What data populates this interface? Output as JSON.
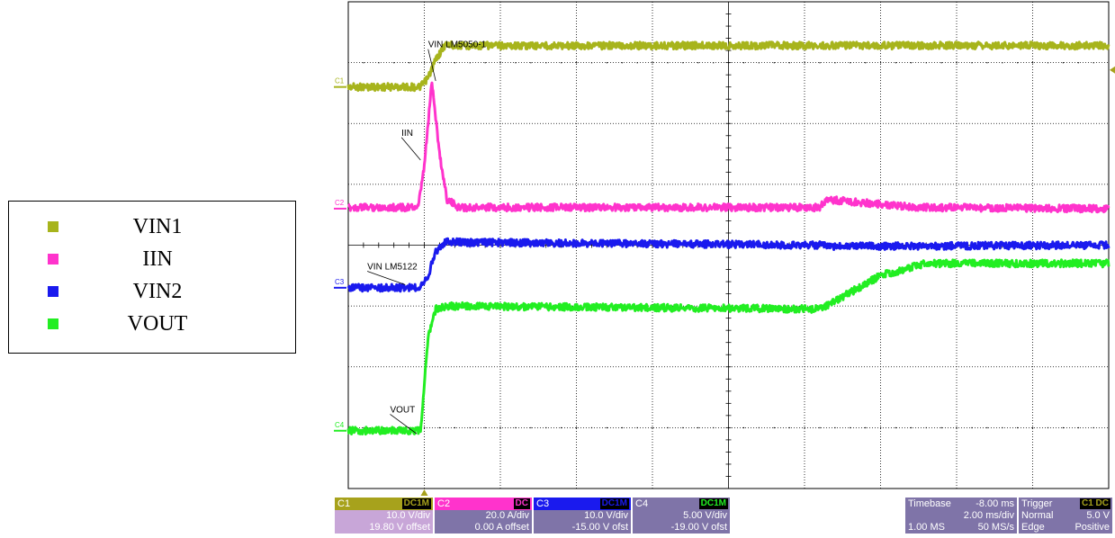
{
  "legend": {
    "items": [
      {
        "label": "VIN1",
        "color": "#a7b41c"
      },
      {
        "label": "IIN",
        "color": "#ff33cc"
      },
      {
        "label": "VIN2",
        "color": "#1a1aee"
      },
      {
        "label": "VOUT",
        "color": "#22ee22"
      }
    ]
  },
  "chart_data": {
    "type": "line",
    "grid": true,
    "x_divisions": 10,
    "y_divisions": 8,
    "xlim_div": [
      0,
      10
    ],
    "ylim_div": [
      0,
      8
    ],
    "annotations": [
      {
        "text": "VIN LM5050-1",
        "at_div": [
          1.05,
          7.25
        ],
        "target_div": [
          1.15,
          6.7
        ]
      },
      {
        "text": "IIN",
        "at_div": [
          0.7,
          5.8
        ],
        "target_div": [
          0.95,
          5.4
        ]
      },
      {
        "text": "VIN LM5122",
        "at_div": [
          0.25,
          3.6
        ],
        "target_div": [
          0.75,
          3.35
        ]
      },
      {
        "text": "VOUT",
        "at_div": [
          0.55,
          1.25
        ],
        "target_div": [
          0.9,
          0.9
        ]
      }
    ],
    "channel_markers": [
      {
        "label": "C1",
        "color": "#a7b41c",
        "y_div": 6.6
      },
      {
        "label": "C2",
        "color": "#ff33cc",
        "y_div": 4.6
      },
      {
        "label": "C3",
        "color": "#1a1aee",
        "y_div": 3.3
      },
      {
        "label": "C4",
        "color": "#22ee22",
        "y_div": 0.95
      }
    ],
    "series": [
      {
        "name": "VIN1",
        "color": "#a7b41c",
        "points": [
          [
            0,
            6.6
          ],
          [
            0.95,
            6.6
          ],
          [
            1.05,
            6.75
          ],
          [
            1.15,
            7.05
          ],
          [
            1.28,
            7.3
          ],
          [
            1.4,
            7.28
          ],
          [
            10,
            7.28
          ]
        ]
      },
      {
        "name": "IIN",
        "color": "#ff33cc",
        "points": [
          [
            0,
            4.62
          ],
          [
            0.92,
            4.62
          ],
          [
            1.0,
            5.3
          ],
          [
            1.1,
            6.7
          ],
          [
            1.2,
            5.5
          ],
          [
            1.3,
            4.75
          ],
          [
            1.45,
            4.62
          ],
          [
            6.2,
            4.62
          ],
          [
            6.3,
            4.75
          ],
          [
            7.5,
            4.62
          ],
          [
            10,
            4.6
          ]
        ]
      },
      {
        "name": "VIN2",
        "color": "#1a1aee",
        "points": [
          [
            0,
            3.3
          ],
          [
            0.92,
            3.3
          ],
          [
            1.05,
            3.5
          ],
          [
            1.15,
            3.9
          ],
          [
            1.28,
            4.05
          ],
          [
            6.2,
            4.0
          ],
          [
            6.3,
            3.98
          ],
          [
            10,
            4.0
          ]
        ]
      },
      {
        "name": "VOUT",
        "color": "#22ee22",
        "points": [
          [
            0,
            0.95
          ],
          [
            0.95,
            0.95
          ],
          [
            1.0,
            1.7
          ],
          [
            1.05,
            2.5
          ],
          [
            1.15,
            2.95
          ],
          [
            1.3,
            3.0
          ],
          [
            6.2,
            2.95
          ],
          [
            6.5,
            3.15
          ],
          [
            7.0,
            3.5
          ],
          [
            7.6,
            3.7
          ],
          [
            10,
            3.7
          ]
        ]
      }
    ],
    "trigger_marker_x_div": 1.0,
    "trigger_level_y_div": 6.88
  },
  "panels": [
    {
      "name": "C1",
      "coupling": "DC1M",
      "line1": "10.0 V/div",
      "line2": "19.80 V offset",
      "header_color": "#a7a21c",
      "body_color": "#c8a6d8",
      "accent": "#a7a21c"
    },
    {
      "name": "C2",
      "coupling": "DC",
      "line1": "20.0 A/div",
      "line2": "0.00 A offset",
      "header_color": "#ff33cc",
      "body_color": "#7f74a8",
      "accent": "#ff33cc"
    },
    {
      "name": "C3",
      "coupling": "DC1M",
      "line1": "10.0 V/div",
      "line2": "-15.00 V ofst",
      "header_color": "#1a1aee",
      "body_color": "#7f74a8",
      "accent": "#1a1aee"
    },
    {
      "name": "C4",
      "coupling": "DC1M",
      "line1": "5.00 V/div",
      "line2": "-19.00 V ofst",
      "header_color": "#7f74a8",
      "body_color": "#7f74a8",
      "accent": "#22ee22"
    }
  ],
  "timebase": {
    "label": "Timebase",
    "delay": "-8.00 ms",
    "per_div": "2.00 ms/div",
    "samples": "1.00 MS",
    "rate": "50 MS/s"
  },
  "trigger": {
    "label": "Trigger",
    "source": "C1 DC",
    "mode": "Normal",
    "level": "5.0 V",
    "type": "Edge",
    "slope": "Positive"
  }
}
